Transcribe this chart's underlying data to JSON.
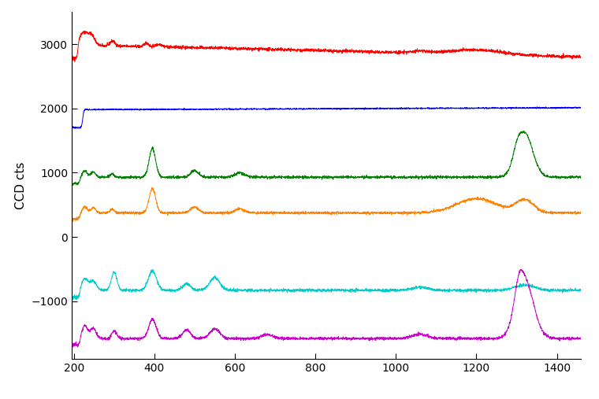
{
  "ylabel": "CCD cts",
  "xlim": [
    195,
    1460
  ],
  "ylim": [
    -1900,
    3500
  ],
  "yticks": [
    -1000,
    0,
    1000,
    2000,
    3000
  ],
  "xticks": [
    200,
    400,
    600,
    800,
    1000,
    1200,
    1400
  ],
  "colors": [
    "#ff0000",
    "#0000ff",
    "#008000",
    "#ff8000",
    "#00cccc",
    "#cc00cc"
  ],
  "offsets": [
    2980,
    1980,
    930,
    375,
    -830,
    -1580
  ],
  "noise_scales": [
    12,
    5,
    10,
    10,
    11,
    11
  ],
  "background_color": "#ffffff",
  "linewidth": 0.7,
  "figsize": [
    7.6,
    5.07
  ],
  "dpi": 100
}
